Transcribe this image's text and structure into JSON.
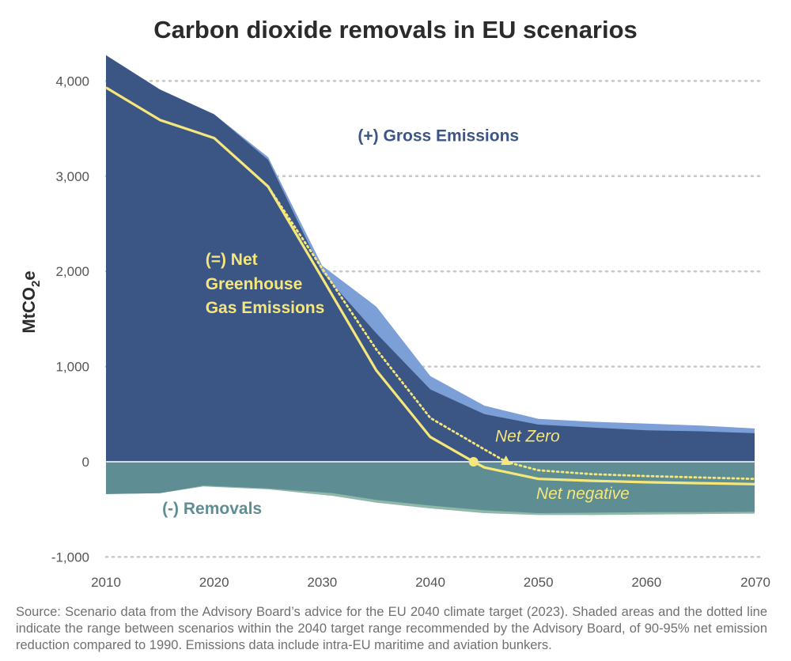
{
  "chart_data": {
    "type": "area",
    "title": "Carbon dioxide removals in EU scenarios",
    "ylabel_main": "MtCO",
    "ylabel_sub": "2",
    "ylabel_tail": "e",
    "xlim": [
      2010,
      2070
    ],
    "ylim": [
      -1000,
      4300
    ],
    "x_ticks": [
      2010,
      2020,
      2030,
      2040,
      2050,
      2060,
      2070
    ],
    "x_tick_labels": [
      "2010",
      "2020",
      "2030",
      "2040",
      "2050",
      "2060",
      "2070"
    ],
    "y_ticks": [
      -1000,
      0,
      1000,
      2000,
      3000,
      4000
    ],
    "y_tick_labels": [
      "-1,000",
      "0",
      "1,000",
      "2,000",
      "3,000",
      "4,000"
    ],
    "grid": "horizontal dotted",
    "series": [
      {
        "name": "(+) Gross Emissions",
        "role": "gross_upper",
        "color": "#7b9fd6",
        "x": [
          2010,
          2015,
          2020,
          2025,
          2030,
          2035,
          2040,
          2045,
          2050,
          2055,
          2060,
          2065,
          2070
        ],
        "values": [
          4270,
          3910,
          3650,
          3200,
          2060,
          1630,
          900,
          590,
          450,
          420,
          400,
          380,
          350
        ]
      },
      {
        "role": "gross_lower",
        "color": "#3b5585",
        "x": [
          2010,
          2015,
          2020,
          2025,
          2030,
          2035,
          2040,
          2045,
          2050,
          2055,
          2060,
          2065,
          2070
        ],
        "values": [
          4270,
          3910,
          3650,
          3170,
          1990,
          1350,
          760,
          500,
          390,
          360,
          330,
          320,
          300
        ]
      },
      {
        "name": "(-) Removals",
        "role": "removals_inner",
        "color": "#5e8d93",
        "x": [
          2010,
          2015,
          2019,
          2025,
          2031,
          2035,
          2040,
          2045,
          2050,
          2055,
          2060,
          2065,
          2070
        ],
        "values": [
          -340,
          -330,
          -250,
          -280,
          -330,
          -400,
          -460,
          -510,
          -540,
          -535,
          -530,
          -530,
          -525
        ]
      },
      {
        "role": "removals_outer",
        "color": "#8fb8a9",
        "x": [
          2010,
          2015,
          2019,
          2025,
          2031,
          2035,
          2040,
          2045,
          2050,
          2055,
          2060,
          2065,
          2070
        ],
        "values": [
          -340,
          -330,
          -260,
          -290,
          -360,
          -430,
          -490,
          -540,
          -560,
          -560,
          -555,
          -550,
          -545
        ]
      },
      {
        "name": "(=) Net Greenhouse Gas Emissions",
        "role": "net_line",
        "color": "#f5e77a",
        "x": [
          2010,
          2015,
          2020,
          2025,
          2030,
          2035,
          2040,
          2044,
          2045,
          2050,
          2055,
          2060,
          2065,
          2070
        ],
        "values": [
          3930,
          3590,
          3400,
          2890,
          1930,
          960,
          260,
          0,
          -60,
          -180,
          -200,
          -215,
          -225,
          -235
        ]
      },
      {
        "role": "net_dotted",
        "color": "#f5e77a",
        "x": [
          2025,
          2030,
          2035,
          2040,
          2045,
          2047,
          2050,
          2055,
          2060,
          2065,
          2070
        ],
        "values": [
          2890,
          2030,
          1180,
          460,
          130,
          0,
          -90,
          -130,
          -150,
          -165,
          -180
        ]
      }
    ],
    "markers": [
      {
        "shape": "circle",
        "x": 2044,
        "y": 0
      },
      {
        "shape": "triangle",
        "x": 2047,
        "y": 0
      }
    ],
    "annotations": [
      {
        "text": "(+) Gross Emissions",
        "x": 2033.3,
        "y": 3370,
        "color": "#3b5585",
        "style": "bold",
        "anchor": "start"
      },
      {
        "text": "(=) Net",
        "x": 2019.2,
        "y": 2070,
        "color": "#f5e77a",
        "style": "bold",
        "anchor": "start"
      },
      {
        "text": "Greenhouse",
        "x": 2019.2,
        "y": 1810,
        "color": "#f5e77a",
        "style": "bold",
        "anchor": "start"
      },
      {
        "text": "Gas Emissions",
        "x": 2019.2,
        "y": 1560,
        "color": "#f5e77a",
        "style": "bold",
        "anchor": "start"
      },
      {
        "text": "Net Zero",
        "x": 2046.0,
        "y": 210,
        "color": "#f5e77a",
        "style": "italic",
        "anchor": "start"
      },
      {
        "text": "Net negative",
        "x": 2049.8,
        "y": -390,
        "color": "#f5e77a",
        "style": "italic",
        "anchor": "start"
      },
      {
        "text": "(-) Removals",
        "x": 2015.2,
        "y": -550,
        "color": "#5e8d93",
        "style": "bold",
        "anchor": "start"
      }
    ]
  },
  "source_note": "Source: Scenario data from the Advisory Board’s advice for the EU 2040 climate target (2023). Shaded areas and the dotted line indicate the range between scenarios within the 2040 target range recommended by the Advisory Board, of 90-95% net emission reduction compared to 1990. Emissions data include intra-EU maritime and aviation bunkers."
}
